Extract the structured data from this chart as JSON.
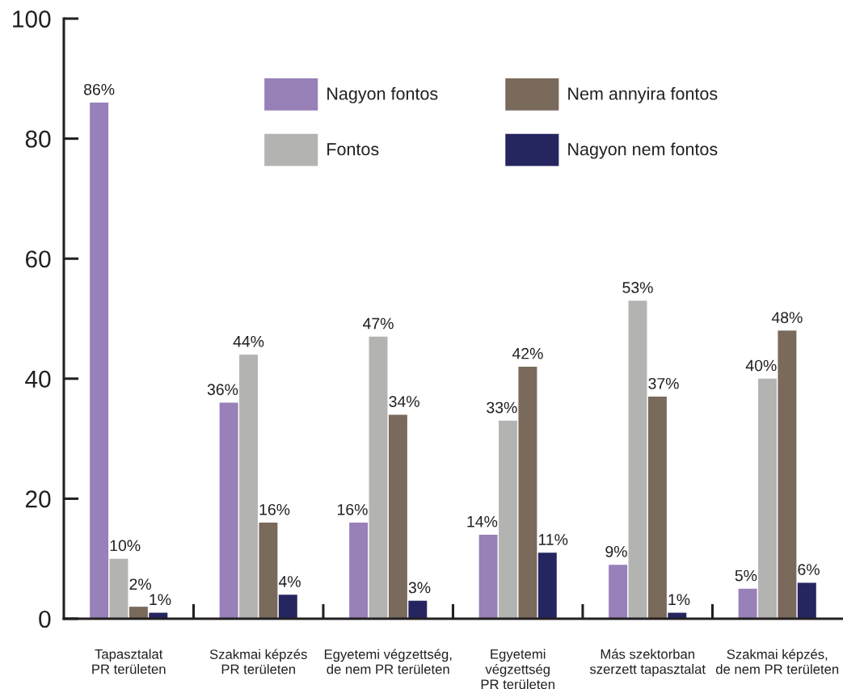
{
  "chart_data": {
    "type": "bar",
    "categories": [
      "Tapasztalat\nPR területen",
      "Szakmai képzés\nPR területen",
      "Egyetemi végzettség,\nde nem PR területen",
      "Egyetemi\nvégzettség\nPR területen",
      "Más szektorban\nszerzett tapasztalat",
      "Szakmai képzés,\nde nem PR területen"
    ],
    "series": [
      {
        "name": "Nagyon fontos",
        "color": "#9880b8",
        "values": [
          86,
          36,
          16,
          14,
          9,
          5
        ],
        "value_labels": [
          "86%",
          "36%",
          "16%",
          "14%",
          "9%",
          "5%"
        ]
      },
      {
        "name": "Fontos",
        "color": "#b3b4b2",
        "values": [
          10,
          44,
          47,
          33,
          53,
          40
        ],
        "value_labels": [
          "10%",
          "44%",
          "47%",
          "33%",
          "53%",
          "40%"
        ]
      },
      {
        "name": "Nem annyira fontos",
        "color": "#7a6a5c",
        "values": [
          2,
          16,
          34,
          42,
          37,
          48
        ],
        "value_labels": [
          "2%",
          "16%",
          "34%",
          "42%",
          "37%",
          "48%"
        ]
      },
      {
        "name": "Nagyon nem fontos",
        "color": "#252660",
        "values": [
          1,
          4,
          3,
          11,
          1,
          6
        ],
        "value_labels": [
          "1%",
          "4%",
          "3%",
          "11%",
          "1%",
          "6%"
        ]
      }
    ],
    "ylim": [
      0,
      100
    ],
    "yticks": [
      0,
      20,
      40,
      60,
      80,
      100
    ],
    "grid": false,
    "legend": "top"
  }
}
